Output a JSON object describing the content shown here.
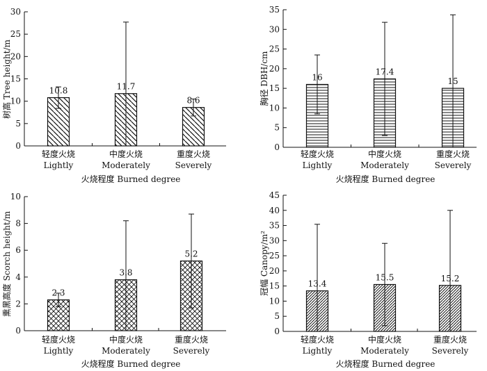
{
  "chart_data": [
    {
      "type": "bar",
      "panel": "top-left",
      "categories": [
        "轻度火烧\nLightly",
        "中度火烧\nModerately",
        "重度火烧\nSeverely"
      ],
      "values": [
        10.8,
        11.7,
        8.6
      ],
      "value_labels": [
        "10.8",
        "11.7",
        "8.6"
      ],
      "errors": [
        2.4,
        16.0,
        1.9
      ],
      "ylabel": "树高 Tree height/m",
      "xlabel": "火烧程度 Burned degree",
      "ylim": [
        0,
        30
      ],
      "yticks": [
        0,
        5,
        10,
        15,
        20,
        25,
        30
      ],
      "pattern": "diagonal-back"
    },
    {
      "type": "bar",
      "panel": "top-right",
      "categories": [
        "轻度火烧\nLightly",
        "中度火烧\nModerately",
        "重度火烧\nSeverely"
      ],
      "values": [
        16,
        17.4,
        15
      ],
      "value_labels": [
        "16",
        "17.4",
        "15"
      ],
      "errors": [
        7.5,
        14.4,
        18.7
      ],
      "ylabel": "胸径 DBH/cm",
      "xlabel": "火烧程度 Burned degree",
      "ylim": [
        0,
        35
      ],
      "yticks": [
        0,
        5,
        10,
        15,
        20,
        25,
        30,
        35
      ],
      "pattern": "horizontal"
    },
    {
      "type": "bar",
      "panel": "bottom-left",
      "categories": [
        "轻度火烧\nLightly",
        "中度火烧\nModerately",
        "重度火烧\nSeverely"
      ],
      "values": [
        2.3,
        3.8,
        5.2
      ],
      "value_labels": [
        "2.3",
        "3.8",
        "5.2"
      ],
      "errors": [
        0.5,
        4.4,
        3.5
      ],
      "ylabel": "熏黑高度 Scorch height/m",
      "xlabel": "火烧程度 Burned degree",
      "ylim": [
        0,
        10
      ],
      "yticks": [
        0,
        2,
        4,
        6,
        8,
        10
      ],
      "pattern": "crosshatch"
    },
    {
      "type": "bar",
      "panel": "bottom-right",
      "categories": [
        "轻度火烧\nLightly",
        "中度火烧\nModerately",
        "重度火烧\nSeverely"
      ],
      "values": [
        13.4,
        15.5,
        15.2
      ],
      "value_labels": [
        "13.4",
        "15.5",
        "15.2"
      ],
      "errors": [
        22.0,
        13.6,
        24.8
      ],
      "ylabel": "冠幅 Canopy/m²",
      "xlabel": "火烧程度 Burned degree",
      "ylim": [
        0,
        45
      ],
      "yticks": [
        0,
        5,
        10,
        15,
        20,
        25,
        30,
        35,
        40,
        45
      ],
      "pattern": "diagonal-forward"
    }
  ]
}
